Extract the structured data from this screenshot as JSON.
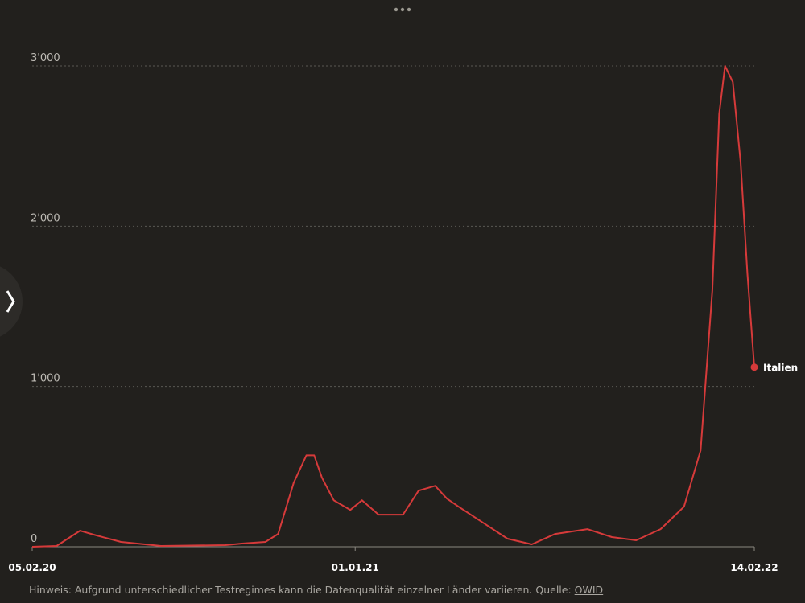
{
  "chart_data": {
    "type": "line",
    "x": [
      "05.02.20",
      "01.03.20",
      "25.03.20",
      "11.04.20",
      "06.05.20",
      "16.06.20",
      "21.08.20",
      "07.09.20",
      "01.10.20",
      "14.10.20",
      "30.10.20",
      "12.11.20",
      "20.11.20",
      "28.11.20",
      "10.12.20",
      "27.12.20",
      "08.01.21",
      "25.01.21",
      "19.02.21",
      "07.03.21",
      "24.03.21",
      "05.04.21",
      "17.04.21",
      "12.05.21",
      "06.06.21",
      "01.07.21",
      "25.07.21",
      "27.08.21",
      "21.09.21",
      "16.10.21",
      "10.11.21",
      "04.12.21",
      "21.12.21",
      "02.01.22",
      "09.01.22",
      "15.01.22",
      "23.01.22",
      "31.01.22",
      "07.02.22",
      "14.02.22"
    ],
    "series": [
      {
        "name": "Italien",
        "color": "#d63a3a",
        "values": [
          0,
          5,
          100,
          70,
          30,
          5,
          10,
          20,
          30,
          80,
          400,
          570,
          570,
          430,
          290,
          230,
          290,
          200,
          200,
          350,
          380,
          300,
          250,
          150,
          50,
          15,
          80,
          110,
          60,
          40,
          110,
          250,
          600,
          1600,
          2700,
          3000,
          2900,
          2400,
          1700,
          1120
        ]
      }
    ],
    "xlim": [
      "05.02.20",
      "14.02.22"
    ],
    "xticks": [
      "05.02.20",
      "01.01.21",
      "14.02.22"
    ],
    "ylim": [
      0,
      3000
    ],
    "yticks": [
      0,
      {
        "value": 1000,
        "label": "1'000"
      },
      {
        "value": 2000,
        "label": "2'000"
      },
      {
        "value": 3000,
        "label": "3'000"
      }
    ],
    "grid": true,
    "note": "Hinweis: Aufgrund unterschiedlicher Testregimes kann die Datenqualität einzelner Länder variieren. Quelle:",
    "source": "OWID"
  }
}
